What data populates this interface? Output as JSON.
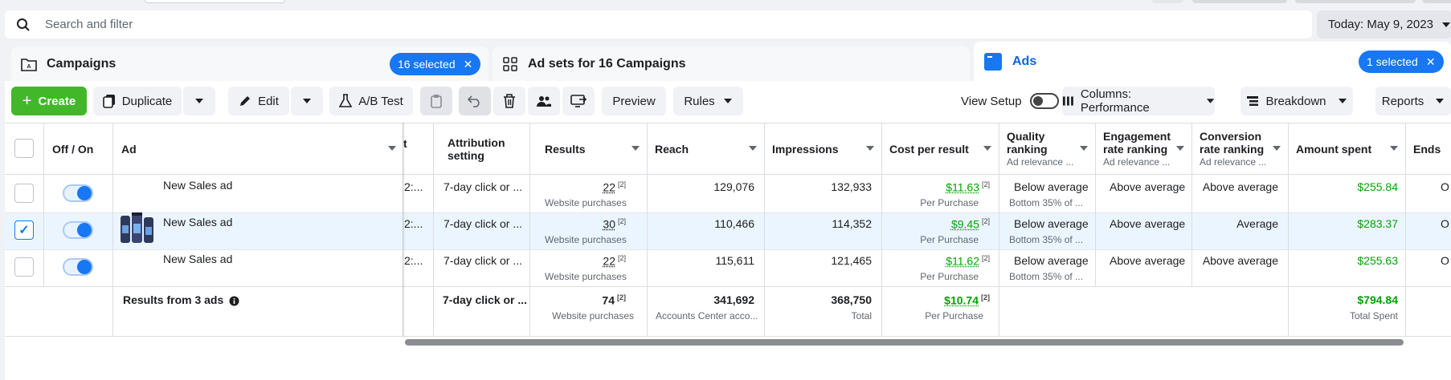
{
  "search": {
    "placeholder": "Search and filter"
  },
  "date_range": {
    "label": "Today: May 9, 2023"
  },
  "tabs": {
    "campaigns": {
      "label": "Campaigns",
      "selected": "16 selected"
    },
    "adsets": {
      "label": "Ad sets for 16 Campaigns"
    },
    "ads": {
      "label": "Ads",
      "selected": "1 selected"
    }
  },
  "toolbar": {
    "create": "Create",
    "duplicate": "Duplicate",
    "edit": "Edit",
    "ab_test": "A/B Test",
    "preview": "Preview",
    "rules": "Rules",
    "view_setup": "View Setup",
    "columns": "Columns: Performance",
    "breakdown": "Breakdown",
    "reports": "Reports"
  },
  "table": {
    "headers": {
      "off_on": "Off / On",
      "ad": "Ad",
      "partial": "t",
      "attribution": "Attribution setting",
      "results": "Results",
      "reach": "Reach",
      "impressions": "Impressions",
      "cost_per_result": "Cost per result",
      "quality": "Quality ranking",
      "quality_sub": "Ad relevance ...",
      "engagement": "Engagement rate ranking",
      "engagement_sub": "Ad relevance ...",
      "conversion": "Conversion rate ranking",
      "conversion_sub": "Ad relevance ...",
      "amount_spent": "Amount spent",
      "ends": "Ends"
    },
    "rows": [
      {
        "checked": false,
        "ad": "New Sales ad",
        "partial": "2:...",
        "attribution": "7-day click or ...",
        "results": "22",
        "results_sub": "Website purchases",
        "reach": "129,076",
        "impressions": "132,933",
        "cost": "$11.63",
        "cost_sub": "Per Purchase",
        "quality": "Below average",
        "quality_sub": "Bottom 35% of ...",
        "engagement": "Above average",
        "conversion": "Above average",
        "spent": "$255.84",
        "ends": "O"
      },
      {
        "checked": true,
        "ad": "New Sales ad",
        "partial": "2:...",
        "attribution": "7-day click or ...",
        "results": "30",
        "results_sub": "Website purchases",
        "reach": "110,466",
        "impressions": "114,352",
        "cost": "$9.45",
        "cost_sub": "Per Purchase",
        "quality": "Below average",
        "quality_sub": "Bottom 35% of ...",
        "engagement": "Above average",
        "conversion": "Average",
        "spent": "$283.37",
        "ends": "O"
      },
      {
        "checked": false,
        "ad": "New Sales ad",
        "partial": "2:...",
        "attribution": "7-day click or ...",
        "results": "22",
        "results_sub": "Website purchases",
        "reach": "115,611",
        "impressions": "121,465",
        "cost": "$11.62",
        "cost_sub": "Per Purchase",
        "quality": "Below average",
        "quality_sub": "Bottom 35% of ...",
        "engagement": "Above average",
        "conversion": "Above average",
        "spent": "$255.63",
        "ends": "O"
      }
    ],
    "footnote": "[2]",
    "totals": {
      "label": "Results from 3 ads",
      "attribution": "7-day click or ...",
      "results": "74",
      "results_sub": "Website purchases",
      "reach": "341,692",
      "reach_sub": "Accounts Center acco...",
      "impressions": "368,750",
      "impressions_sub": "Total",
      "cost": "$10.74",
      "cost_sub": "Per Purchase",
      "spent": "$794.84",
      "spent_sub": "Total Spent"
    }
  },
  "colors": {
    "primary": "#1877f2",
    "create_green": "#42b72a",
    "money_green": "#00a400",
    "selected_row": "#ebf5ff"
  }
}
